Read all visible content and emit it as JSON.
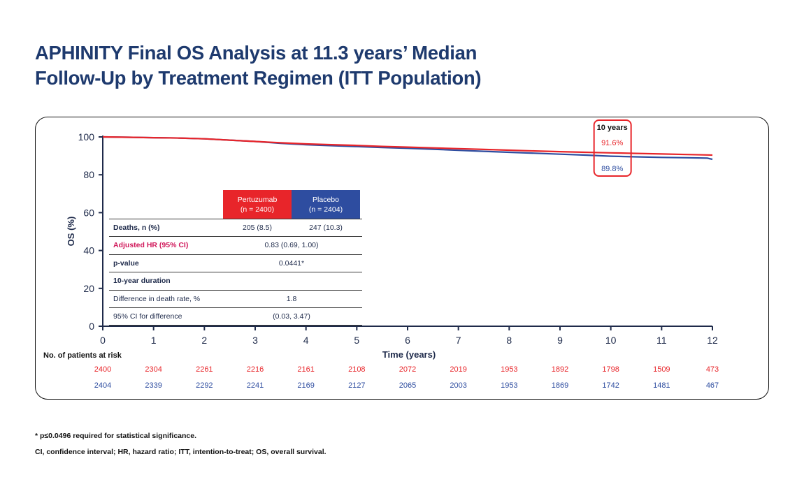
{
  "title": {
    "line1": "APHINITY Final OS Analysis at 11.3 years’ Median",
    "line2": "Follow-Up by Treatment Regimen (ITT Population)"
  },
  "colors": {
    "pertuzumab": "#e8252a",
    "placebo": "#2e4da0",
    "hr_label": "#d0185a",
    "title": "#1e3a6e"
  },
  "chart_data": {
    "type": "line",
    "title": "APHINITY Final OS Analysis at 11.3 years’ Median Follow-Up by Treatment Regimen (ITT Population)",
    "xlabel": "Time (years)",
    "ylabel": "OS (%)",
    "xlim": [
      0,
      12
    ],
    "ylim": [
      0,
      100
    ],
    "xticks": [
      "0",
      "1",
      "2",
      "3",
      "4",
      "5",
      "6",
      "7",
      "8",
      "9",
      "10",
      "11",
      "12"
    ],
    "yticks": [
      "0",
      "20",
      "40",
      "60",
      "80",
      "100"
    ],
    "series": [
      {
        "name": "Pertuzumab",
        "color": "#e8252a",
        "x": [
          0,
          0.5,
          1,
          1.5,
          2,
          2.5,
          3,
          3.5,
          4,
          4.5,
          5,
          5.5,
          6,
          6.5,
          7,
          7.5,
          8,
          8.5,
          9,
          9.5,
          10,
          10.5,
          11,
          11.5,
          12
        ],
        "y": [
          100,
          99.8,
          99.6,
          99.4,
          99.0,
          98.3,
          97.6,
          96.9,
          96.3,
          95.9,
          95.5,
          95.0,
          94.6,
          94.2,
          93.8,
          93.4,
          93.0,
          92.6,
          92.2,
          91.9,
          91.6,
          91.3,
          91.0,
          90.7,
          90.4
        ]
      },
      {
        "name": "Placebo",
        "color": "#2e4da0",
        "x": [
          0,
          0.5,
          1,
          1.5,
          2,
          2.5,
          3,
          3.5,
          4,
          4.5,
          5,
          5.5,
          6,
          6.5,
          7,
          7.5,
          8,
          8.5,
          9,
          9.5,
          10,
          10.5,
          11,
          11.5,
          11.9,
          12
        ],
        "y": [
          100,
          99.8,
          99.6,
          99.4,
          99.0,
          98.3,
          97.6,
          96.6,
          95.9,
          95.4,
          94.9,
          94.4,
          94.0,
          93.5,
          92.9,
          92.4,
          91.9,
          91.4,
          90.9,
          90.4,
          89.8,
          89.5,
          89.2,
          89.0,
          88.8,
          88.2
        ]
      }
    ],
    "annotation": {
      "label": "10 years",
      "pertuzumab_value": "91.6%",
      "placebo_value": "89.8%",
      "x": 10
    },
    "at_risk": {
      "label": "No. of patients at risk",
      "pertuzumab": [
        "2400",
        "2304",
        "2261",
        "2216",
        "2161",
        "2108",
        "2072",
        "2019",
        "1953",
        "1892",
        "1798",
        "1509",
        "473"
      ],
      "placebo": [
        "2404",
        "2339",
        "2292",
        "2241",
        "2169",
        "2127",
        "2065",
        "2003",
        "1953",
        "1869",
        "1742",
        "1481",
        "467"
      ]
    }
  },
  "table": {
    "col_pertuzumab": {
      "name": "Pertuzumab",
      "n": "(n = 2400)"
    },
    "col_placebo": {
      "name": "Placebo",
      "n": "(n = 2404)"
    },
    "deaths": {
      "label": "Deaths, n (%)",
      "pertuzumab": "205 (8.5)",
      "placebo": "247 (10.3)"
    },
    "hr": {
      "label": "Adjusted HR (95% CI)",
      "value": "0.83 (0.69, 1.00)"
    },
    "pvalue": {
      "label": "p-value",
      "value": "0.0441*"
    },
    "duration": {
      "label": "10-year duration"
    },
    "diff": {
      "label": "Difference in death rate, %",
      "value": "1.8"
    },
    "ci": {
      "label": "95% CI for difference",
      "value": "(0.03, 3.47)"
    }
  },
  "footnotes": {
    "significance": "* p≤0.0496 required for statistical significance.",
    "abbreviations": "CI, confidence interval; HR, hazard ratio; ITT, intention-to-treat; OS, overall survival."
  }
}
